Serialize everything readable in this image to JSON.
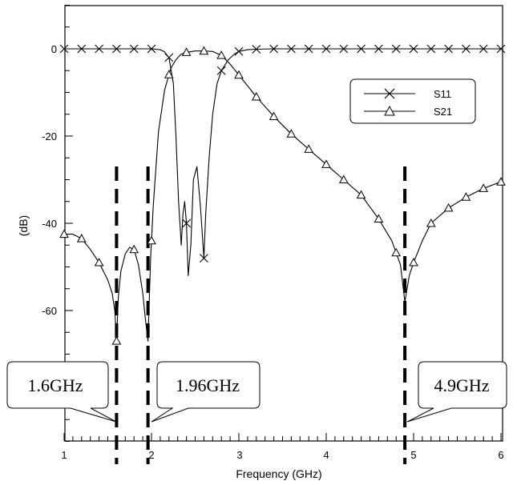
{
  "chart_data": {
    "type": "line",
    "xlabel": "Frequency (GHz)",
    "ylabel": "(dB)",
    "xlim": [
      1,
      6
    ],
    "ylim": [
      -90,
      10
    ],
    "xticks": [
      "1",
      "2",
      "3",
      "4",
      "5",
      "6"
    ],
    "yticks": [
      "0",
      "-20",
      "-40",
      "-60"
    ],
    "grid": false,
    "legend_position": "top-right",
    "series": [
      {
        "name": "S11",
        "marker": "x",
        "color": "#000000",
        "x": [
          1.0,
          1.2,
          1.4,
          1.6,
          1.8,
          2.0,
          2.1,
          2.15,
          2.2,
          2.25,
          2.28,
          2.31,
          2.34,
          2.36,
          2.38,
          2.4,
          2.42,
          2.45,
          2.48,
          2.52,
          2.56,
          2.6,
          2.62,
          2.66,
          2.7,
          2.75,
          2.8,
          2.88,
          2.95,
          3.0,
          3.1,
          3.2,
          3.4,
          3.6,
          4.0,
          4.5,
          5.0,
          5.5,
          6.0
        ],
        "y": [
          0,
          0,
          0,
          0,
          0,
          0,
          -0.2,
          -0.7,
          -2,
          -8,
          -20,
          -35,
          -45,
          -38,
          -35,
          -40,
          -52,
          -45,
          -30,
          -27,
          -36,
          -48,
          -38,
          -25,
          -15,
          -8,
          -5,
          -2.5,
          -1.2,
          -0.6,
          -0.2,
          -0.1,
          0,
          0,
          0,
          0,
          0,
          0,
          0
        ]
      },
      {
        "name": "S21",
        "marker": "triangle",
        "color": "#000000",
        "x": [
          1.0,
          1.1,
          1.2,
          1.3,
          1.4,
          1.5,
          1.55,
          1.58,
          1.6,
          1.62,
          1.65,
          1.7,
          1.75,
          1.8,
          1.85,
          1.9,
          1.93,
          1.96,
          1.99,
          2.02,
          2.08,
          2.15,
          2.22,
          2.28,
          2.34,
          2.4,
          2.5,
          2.6,
          2.7,
          2.8,
          2.9,
          3.0,
          3.2,
          3.4,
          3.6,
          3.8,
          4.0,
          4.2,
          4.4,
          4.6,
          4.75,
          4.85,
          4.9,
          4.95,
          5.0,
          5.1,
          5.2,
          5.4,
          5.6,
          5.8,
          6.0
        ],
        "y": [
          -42.5,
          -42.5,
          -43.5,
          -46,
          -49,
          -53,
          -56,
          -60,
          -67,
          -57,
          -51,
          -47,
          -45.5,
          -46,
          -49.5,
          -56,
          -62,
          -67,
          -48,
          -36,
          -19,
          -9.5,
          -4.5,
          -2.5,
          -1.2,
          -0.8,
          -0.5,
          -0.5,
          -0.6,
          -1.5,
          -3.5,
          -6,
          -11,
          -15.5,
          -19.5,
          -23,
          -26.5,
          -30,
          -33.5,
          -39,
          -44,
          -49.5,
          -58,
          -52,
          -49,
          -44,
          -40,
          -36.5,
          -34,
          -32,
          -30.5
        ]
      }
    ],
    "annotations": [
      {
        "label": "1.6GHz",
        "x": 1.6
      },
      {
        "label": "1.96GHz",
        "x": 1.96
      },
      {
        "label": "4.9GHz",
        "x": 4.9
      }
    ]
  }
}
